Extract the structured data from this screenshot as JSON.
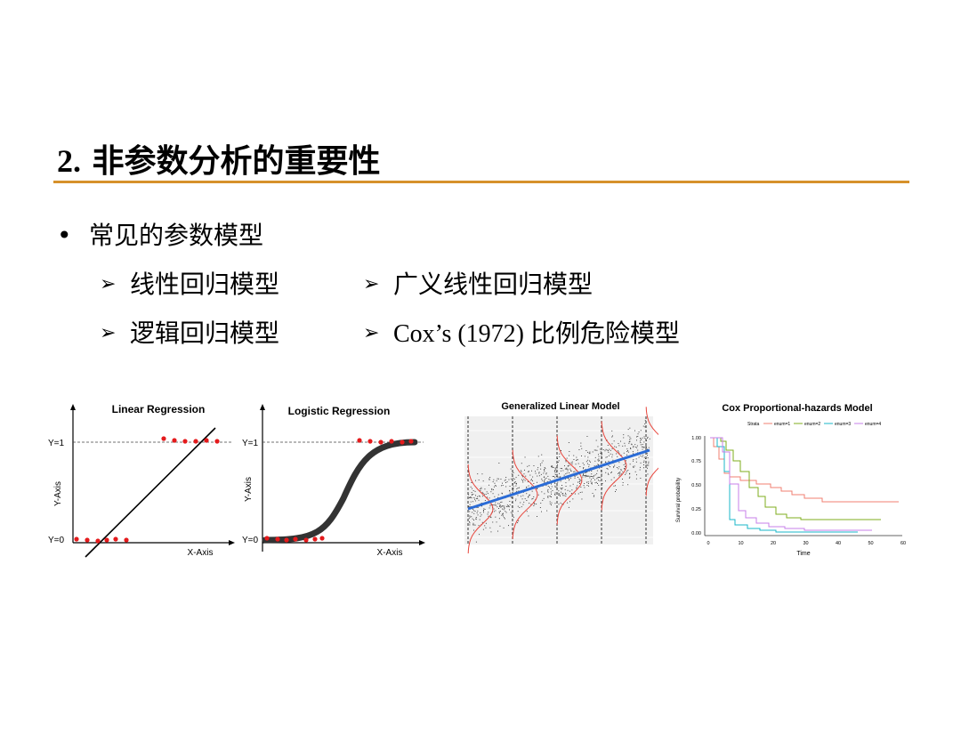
{
  "slide": {
    "title_number": "2.",
    "title_text": " 非参数分析的重要性",
    "bullet": "常见的参数模型",
    "items": [
      "线性回归模型",
      "广义线性回归模型",
      "逻辑回归模型",
      "Cox’s (1972) ",
      "比例危险模型"
    ],
    "bullet_marker": "•",
    "arrow_marker": "➢"
  },
  "figures": {
    "linear": {
      "title": "Linear Regression",
      "y1": "Y=1",
      "y0": "Y=0",
      "ylabel": "Y-Axis",
      "xlabel": "X-Axis"
    },
    "logistic": {
      "title": "Logistic Regression",
      "y1": "Y=1",
      "y0": "Y=0",
      "ylabel": "Y-Axis",
      "xlabel": "X-Axis"
    },
    "glm": {
      "title": "Generalized Linear Model"
    },
    "cox": {
      "title": "Cox Proportional-hazards Model",
      "legend_title": "Strata",
      "legend": [
        "enum=1",
        "enum=2",
        "enum=3",
        "enum=4"
      ],
      "colors": [
        "#f07f72",
        "#7fae1e",
        "#18b7c9",
        "#c77fe8"
      ],
      "ylabel": "Survival probability",
      "xlabel": "Time",
      "yticks": [
        "1.00",
        "0.75",
        "0.50",
        "0.25",
        "0.00"
      ],
      "xticks": [
        "0",
        "10",
        "20",
        "30",
        "40",
        "50",
        "60"
      ]
    },
    "accent": "#d6912b",
    "dot_color": "#e41a1c",
    "line_blue": "#2a6bd6"
  }
}
